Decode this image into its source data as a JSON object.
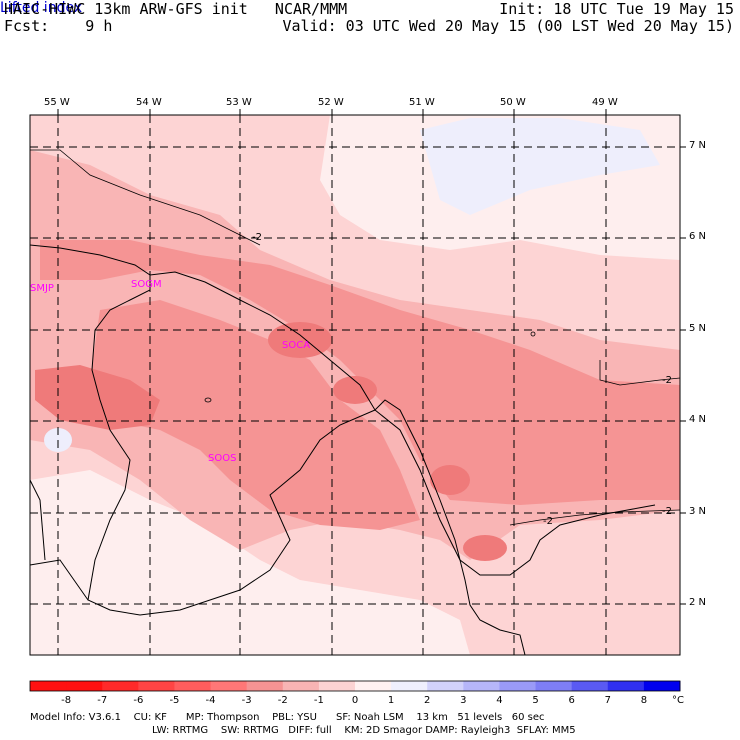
{
  "header": {
    "title": "HAIC-HIWC 13km ARW-GFS init   NCAR/MMM",
    "forecast": "Fcst:    9 h",
    "init": "Init: 18 UTC Tue 19 May 15",
    "valid": "Valid: 03 UTC Wed 20 May 15 (00 LST Wed 20 May 15)",
    "field": "Lifted index"
  },
  "map": {
    "lon_labels": [
      "55 W",
      "54 W",
      "53 W",
      "52 W",
      "51 W",
      "50 W",
      "49 W"
    ],
    "lat_labels": [
      "7 N",
      "6 N",
      "5 N",
      "4 N",
      "3 N",
      "2 N"
    ],
    "stations": [
      "SMJP",
      "SOGM",
      "SOCA",
      "SOOS"
    ],
    "contour_labels": [
      "-2",
      "-2",
      "-2",
      "-2"
    ]
  },
  "colorbar": {
    "labels": [
      "-8",
      "-7",
      "-6",
      "-5",
      "-4",
      "-3",
      "-2",
      "-1",
      "0",
      "1",
      "2",
      "3",
      "4",
      "5",
      "6",
      "7",
      "8"
    ],
    "unit": "°C",
    "colors": [
      "#ff1111",
      "#ff2a2a",
      "#ff4444",
      "#ff5d5d",
      "#ff7777",
      "#f59393",
      "#f8b4b4",
      "#fcd3d3",
      "#fff1f1",
      "#efeffd",
      "#d2d2fb",
      "#b6b6f9",
      "#9a9af7",
      "#7e7ef5",
      "#5a5af3",
      "#3030f0",
      "#0000ee"
    ]
  },
  "footer": {
    "line1": "Model Info: V3.6.1    CU: KF      MP: Thompson    PBL: YSU      SF: Noah LSM    13 km   51 levels   60 sec",
    "line2": "LW: RRTMG    SW: RRTMG   DIFF: full    KM: 2D Smagor DAMP: Rayleigh3  SFLAY: MM5"
  }
}
